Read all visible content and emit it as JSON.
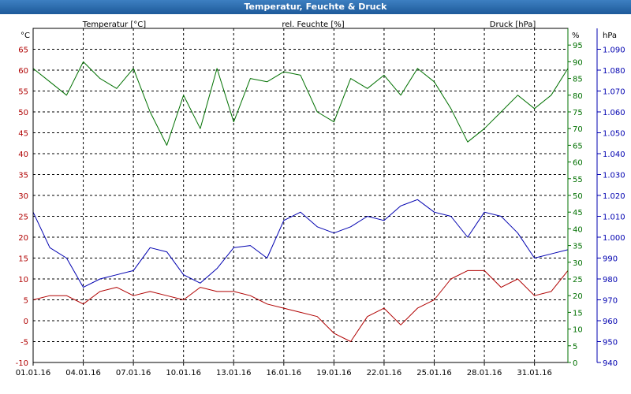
{
  "window": {
    "title": "Temperatur, Feuchte & Druck"
  },
  "colors": {
    "temperature": "#b00000",
    "humidity": "#007000",
    "pressure": "#0000b0",
    "grid": "#000000"
  },
  "chart_data": {
    "type": "line",
    "title": "Temperatur, Feuchte & Druck",
    "grid": true,
    "x_range": [
      "01.01.16",
      "02.02.16"
    ],
    "x_ticks": [
      "01.01.16",
      "04.01.16",
      "07.01.16",
      "10.01.16",
      "13.01.16",
      "16.01.16",
      "19.01.16",
      "22.01.16",
      "25.01.16",
      "28.01.16",
      "31.01.16"
    ],
    "axes": {
      "temperature": {
        "label": "Temperatur [°C]",
        "unit": "°C",
        "range": [
          -10,
          70
        ],
        "ticks": [
          "-10",
          "-5",
          "0",
          "5",
          "10",
          "15",
          "20",
          "25",
          "30",
          "35",
          "40",
          "45",
          "50",
          "55",
          "60",
          "65"
        ]
      },
      "humidity": {
        "label": "rel. Feuchte [%]",
        "unit": "%",
        "range": [
          0,
          100
        ],
        "ticks": [
          "0",
          "5",
          "10",
          "15",
          "20",
          "25",
          "30",
          "35",
          "40",
          "45",
          "50",
          "55",
          "60",
          "65",
          "70",
          "75",
          "80",
          "85",
          "90",
          "95"
        ]
      },
      "pressure": {
        "label": "Druck [hPa]",
        "unit": "hPa",
        "range": [
          940,
          1100
        ],
        "ticks": [
          "940",
          "950",
          "960",
          "970",
          "980",
          "990",
          "1.000",
          "1.010",
          "1.020",
          "1.030",
          "1.040",
          "1.050",
          "1.060",
          "1.070",
          "1.080",
          "1.090"
        ]
      }
    },
    "series": [
      {
        "name": "Temperatur [°C]",
        "axis": "temperature",
        "x": [
          "01.01.16",
          "02.01.16",
          "03.01.16",
          "04.01.16",
          "05.01.16",
          "06.01.16",
          "07.01.16",
          "08.01.16",
          "09.01.16",
          "10.01.16",
          "11.01.16",
          "12.01.16",
          "13.01.16",
          "14.01.16",
          "15.01.16",
          "16.01.16",
          "17.01.16",
          "18.01.16",
          "19.01.16",
          "20.01.16",
          "21.01.16",
          "22.01.16",
          "23.01.16",
          "24.01.16",
          "25.01.16",
          "26.01.16",
          "27.01.16",
          "28.01.16",
          "29.01.16",
          "30.01.16",
          "31.01.16",
          "01.02.16",
          "02.02.16"
        ],
        "values": [
          5,
          6,
          6,
          4,
          7,
          8,
          6,
          7,
          6,
          5,
          8,
          7,
          7,
          6,
          4,
          3,
          2,
          1,
          -3,
          -5,
          1,
          3,
          -1,
          3,
          5,
          10,
          12,
          12,
          8,
          10,
          6,
          7,
          12
        ]
      },
      {
        "name": "rel. Feuchte [%]",
        "axis": "humidity",
        "x": [
          "01.01.16",
          "02.01.16",
          "03.01.16",
          "04.01.16",
          "05.01.16",
          "06.01.16",
          "07.01.16",
          "08.01.16",
          "09.01.16",
          "10.01.16",
          "11.01.16",
          "12.01.16",
          "13.01.16",
          "14.01.16",
          "15.01.16",
          "16.01.16",
          "17.01.16",
          "18.01.16",
          "19.01.16",
          "20.01.16",
          "21.01.16",
          "22.01.16",
          "23.01.16",
          "24.01.16",
          "25.01.16",
          "26.01.16",
          "27.01.16",
          "28.01.16",
          "29.01.16",
          "30.01.16",
          "31.01.16",
          "01.02.16",
          "02.02.16"
        ],
        "values": [
          88,
          84,
          80,
          90,
          85,
          82,
          88,
          75,
          65,
          80,
          70,
          88,
          72,
          85,
          84,
          87,
          86,
          75,
          72,
          85,
          82,
          86,
          80,
          88,
          84,
          76,
          66,
          70,
          75,
          80,
          76,
          80,
          88
        ]
      },
      {
        "name": "Druck [hPa]",
        "axis": "pressure",
        "x": [
          "01.01.16",
          "02.01.16",
          "03.01.16",
          "04.01.16",
          "05.01.16",
          "06.01.16",
          "07.01.16",
          "08.01.16",
          "09.01.16",
          "10.01.16",
          "11.01.16",
          "12.01.16",
          "13.01.16",
          "14.01.16",
          "15.01.16",
          "16.01.16",
          "17.01.16",
          "18.01.16",
          "19.01.16",
          "20.01.16",
          "21.01.16",
          "22.01.16",
          "23.01.16",
          "24.01.16",
          "25.01.16",
          "26.01.16",
          "27.01.16",
          "28.01.16",
          "29.01.16",
          "30.01.16",
          "31.01.16",
          "01.02.16",
          "02.02.16"
        ],
        "values": [
          1012,
          995,
          990,
          976,
          980,
          982,
          984,
          995,
          993,
          982,
          978,
          985,
          995,
          996,
          990,
          1008,
          1012,
          1005,
          1002,
          1005,
          1010,
          1008,
          1015,
          1018,
          1012,
          1010,
          1000,
          1012,
          1010,
          1002,
          990,
          992,
          994
        ]
      }
    ]
  }
}
